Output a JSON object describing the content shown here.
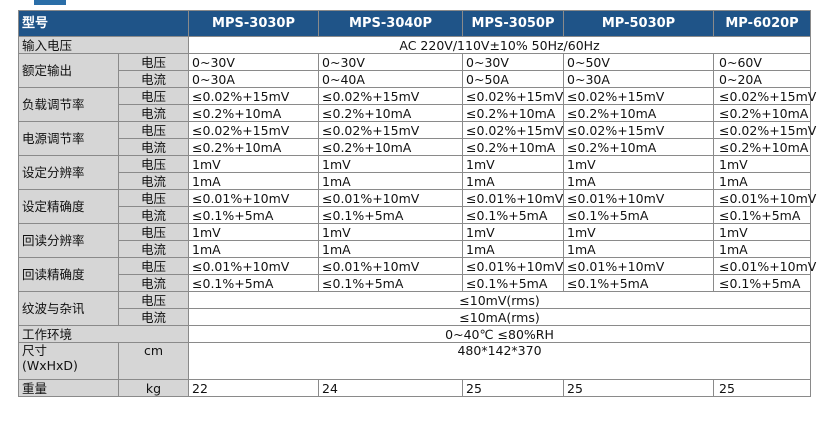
{
  "table": {
    "header": [
      "型号",
      "MPS-3030P",
      "MPS-3040P",
      "MPS-3050P",
      "MP-5030P",
      "MP-6020P"
    ],
    "groups": [
      {
        "label": "输入电压",
        "span": "AC 220V/110V±10% 50Hz/60Hz"
      },
      {
        "label": "额定输出",
        "rows": [
          {
            "sub": "电压",
            "values": [
              "0~30V",
              "0~30V",
              "0~30V",
              "0~50V",
              "0~60V"
            ]
          },
          {
            "sub": "电流",
            "values": [
              "0~30A",
              "0~40A",
              "0~50A",
              "0~30A",
              "0~20A"
            ]
          }
        ]
      },
      {
        "label": "负载调节率",
        "rows": [
          {
            "sub": "电压",
            "values": [
              "≤0.02%+15mV",
              "≤0.02%+15mV",
              "≤0.02%+15mV",
              "≤0.02%+15mV",
              "≤0.02%+15mV"
            ]
          },
          {
            "sub": "电流",
            "values": [
              "≤0.2%+10mA",
              "≤0.2%+10mA",
              "≤0.2%+10mA",
              "≤0.2%+10mA",
              "≤0.2%+10mA"
            ]
          }
        ]
      },
      {
        "label": "电源调节率",
        "rows": [
          {
            "sub": "电压",
            "values": [
              "≤0.02%+15mV",
              "≤0.02%+15mV",
              "≤0.02%+15mV",
              "≤0.02%+15mV",
              "≤0.02%+15mV"
            ]
          },
          {
            "sub": "电流",
            "values": [
              "≤0.2%+10mA",
              "≤0.2%+10mA",
              "≤0.2%+10mA",
              "≤0.2%+10mA",
              "≤0.2%+10mA"
            ]
          }
        ]
      },
      {
        "label": "设定分辨率",
        "rows": [
          {
            "sub": "电压",
            "values": [
              "1mV",
              "1mV",
              "1mV",
              "1mV",
              "1mV"
            ]
          },
          {
            "sub": "电流",
            "values": [
              "1mA",
              "1mA",
              "1mA",
              "1mA",
              "1mA"
            ]
          }
        ]
      },
      {
        "label": "设定精确度",
        "rows": [
          {
            "sub": "电压",
            "values": [
              "≤0.01%+10mV",
              "≤0.01%+10mV",
              "≤0.01%+10mV",
              "≤0.01%+10mV",
              "≤0.01%+10mV"
            ]
          },
          {
            "sub": "电流",
            "values": [
              "≤0.1%+5mA",
              "≤0.1%+5mA",
              "≤0.1%+5mA",
              "≤0.1%+5mA",
              "≤0.1%+5mA"
            ]
          }
        ]
      },
      {
        "label": "回读分辨率",
        "rows": [
          {
            "sub": "电压",
            "values": [
              "1mV",
              "1mV",
              "1mV",
              "1mV",
              "1mV"
            ]
          },
          {
            "sub": "电流",
            "values": [
              "1mA",
              "1mA",
              "1mA",
              "1mA",
              "1mA"
            ]
          }
        ]
      },
      {
        "label": "回读精确度",
        "rows": [
          {
            "sub": "电压",
            "values": [
              "≤0.01%+10mV",
              "≤0.01%+10mV",
              "≤0.01%+10mV",
              "≤0.01%+10mV",
              "≤0.01%+10mV"
            ]
          },
          {
            "sub": "电流",
            "values": [
              "≤0.1%+5mA",
              "≤0.1%+5mA",
              "≤0.1%+5mA",
              "≤0.1%+5mA",
              "≤0.1%+5mA"
            ]
          }
        ]
      },
      {
        "label": "纹波与杂讯",
        "rows": [
          {
            "sub": "电压",
            "span": "≤10mV(rms)"
          },
          {
            "sub": "电流",
            "span": "≤10mA(rms)"
          }
        ]
      },
      {
        "label": "工作环境",
        "span": "0~40℃ ≤80%RH"
      },
      {
        "label": "尺寸\n(WxHxD)",
        "unit": "cm",
        "span": "480*142*370"
      },
      {
        "label": "重量",
        "unit": "kg",
        "values": [
          "22",
          "24",
          "25",
          "25",
          "25"
        ]
      }
    ]
  }
}
